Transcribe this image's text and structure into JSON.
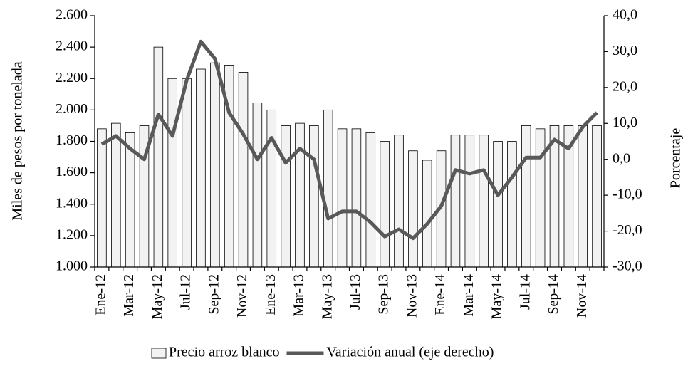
{
  "chart_data": {
    "type": "bar",
    "y_label": "Miles de pesos por tonelada",
    "y2_label": "Porcentaje",
    "categories": [
      "Ene-12",
      null,
      "Mar-12",
      null,
      "May-12",
      null,
      "Jul-12",
      null,
      "Sep-12",
      null,
      "Nov-12",
      null,
      "Ene-13",
      null,
      "Mar-13",
      null,
      "May-13",
      null,
      "Jul-13",
      null,
      "Sep-13",
      null,
      "Nov-13",
      null,
      "Ene-14",
      null,
      "Mar-14",
      null,
      "May-14",
      null,
      "Jul-14",
      null,
      "Sep-14",
      null,
      "Nov-14",
      null
    ],
    "series": [
      {
        "name": "Precio arroz blanco",
        "type": "bar",
        "color": "#f2f2f2",
        "values": [
          1880,
          1915,
          1855,
          1900,
          2400,
          2200,
          2200,
          2260,
          2300,
          2285,
          2240,
          2045,
          2000,
          1900,
          1915,
          1900,
          2000,
          1880,
          1880,
          1855,
          1800,
          1840,
          1740,
          1680,
          1740,
          1840,
          1840,
          1840,
          1800,
          1800,
          1900,
          1880,
          1900,
          1900,
          1900,
          1900
        ]
      },
      {
        "name": "Variación anual (eje derecho)",
        "type": "line",
        "axis": "y2",
        "color": "#595959",
        "values": [
          4.2,
          6.5,
          3.0,
          0.0,
          12.5,
          6.5,
          22,
          32.8,
          28,
          13,
          7,
          0,
          6,
          -1,
          3,
          0,
          -16.5,
          -14.5,
          -14.5,
          -17.5,
          -21.5,
          -19.5,
          -22,
          -18,
          -13,
          -3,
          -4,
          -3,
          -10,
          -5,
          0.5,
          0.5,
          5.5,
          3,
          9,
          13
        ]
      }
    ],
    "ylim": [
      1000,
      2600
    ],
    "yticks": [
      {
        "value": 1000,
        "label": "1.000"
      },
      {
        "value": 1200,
        "label": "1.200"
      },
      {
        "value": 1400,
        "label": "1.400"
      },
      {
        "value": 1600,
        "label": "1.600"
      },
      {
        "value": 1800,
        "label": "1.800"
      },
      {
        "value": 2000,
        "label": "2.000"
      },
      {
        "value": 2200,
        "label": "2.200"
      },
      {
        "value": 2400,
        "label": "2.400"
      },
      {
        "value": 2600,
        "label": "2.600"
      }
    ],
    "y2lim": [
      -30,
      40
    ],
    "y2ticks": [
      {
        "value": -30,
        "label": "-30,0"
      },
      {
        "value": -20,
        "label": "-20,0"
      },
      {
        "value": -10,
        "label": "-10,0"
      },
      {
        "value": 0,
        "label": "0,0"
      },
      {
        "value": 10,
        "label": "10,0"
      },
      {
        "value": 20,
        "label": "20,0"
      },
      {
        "value": 30,
        "label": "30,0"
      },
      {
        "value": 40,
        "label": "40,0"
      }
    ],
    "grid": false,
    "legend": "bottom"
  }
}
